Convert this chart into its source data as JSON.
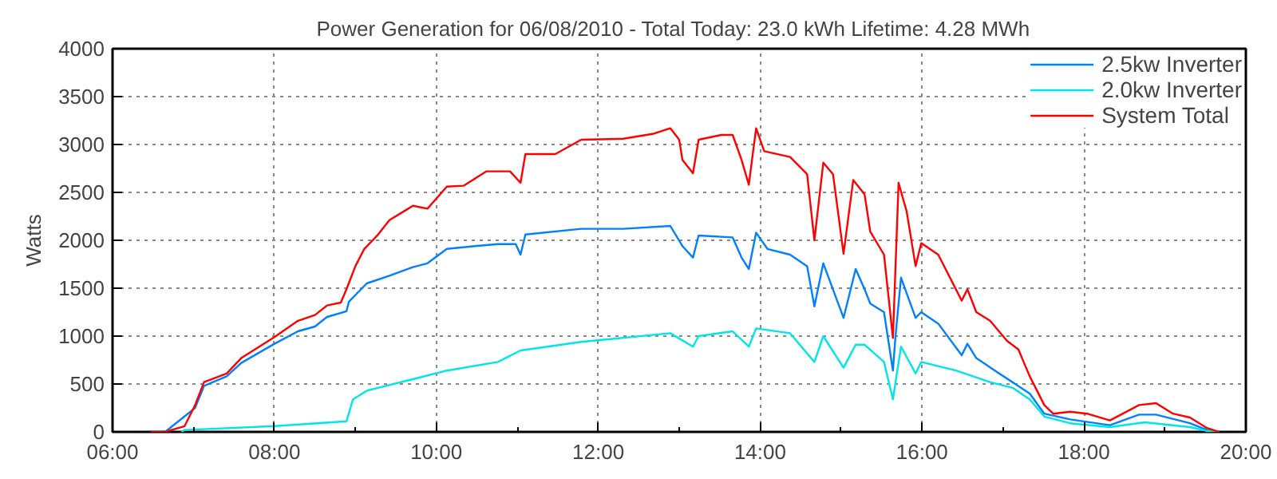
{
  "chart_data": {
    "type": "line",
    "title": "Power Generation for 06/08/2010 - Total Today: 23.0 kWh   Lifetime: 4.28 MWh",
    "ylabel": "Watts",
    "xlim": [
      6,
      20
    ],
    "ylim": [
      0,
      4000
    ],
    "xticks": [
      {
        "value": 6,
        "label": "06:00"
      },
      {
        "value": 7,
        "label": null
      },
      {
        "value": 8,
        "label": "08:00"
      },
      {
        "value": 9,
        "label": null
      },
      {
        "value": 10,
        "label": "10:00"
      },
      {
        "value": 11,
        "label": null
      },
      {
        "value": 12,
        "label": "12:00"
      },
      {
        "value": 13,
        "label": null
      },
      {
        "value": 14,
        "label": "14:00"
      },
      {
        "value": 15,
        "label": null
      },
      {
        "value": 16,
        "label": "16:00"
      },
      {
        "value": 17,
        "label": null
      },
      {
        "value": 18,
        "label": "18:00"
      },
      {
        "value": 19,
        "label": null
      },
      {
        "value": 20,
        "label": "20:00"
      }
    ],
    "yticks": [
      0,
      500,
      1000,
      1500,
      2000,
      2500,
      3000,
      3500,
      4000
    ],
    "grid": true,
    "legend": "top right",
    "series": [
      {
        "name": "2.5kw Inverter",
        "color": "#0080ff",
        "x": [
          6.65,
          7.02,
          7.13,
          7.41,
          7.59,
          8.0,
          8.29,
          8.5,
          8.65,
          8.89,
          8.92,
          9.14,
          9.42,
          9.71,
          9.89,
          10.13,
          10.48,
          10.76,
          10.98,
          11.04,
          11.1,
          11.79,
          12.31,
          12.89,
          13.04,
          13.17,
          13.24,
          13.66,
          13.77,
          13.86,
          13.95,
          14.09,
          14.37,
          14.58,
          14.67,
          14.78,
          15.03,
          15.18,
          15.29,
          15.36,
          15.53,
          15.64,
          15.67,
          15.74,
          15.92,
          15.99,
          16.2,
          16.49,
          16.56,
          16.67,
          16.9,
          17.33,
          17.51,
          17.83,
          18.32,
          18.68,
          18.89,
          19.31,
          19.52,
          19.67
        ],
        "values": [
          0,
          250,
          480,
          580,
          720,
          920,
          1050,
          1100,
          1200,
          1260,
          1360,
          1550,
          1630,
          1720,
          1760,
          1910,
          1940,
          1960,
          1960,
          1850,
          2060,
          2120,
          2120,
          2150,
          1940,
          1820,
          2050,
          2030,
          1820,
          1700,
          2080,
          1910,
          1850,
          1730,
          1310,
          1760,
          1190,
          1700,
          1490,
          1340,
          1250,
          640,
          980,
          1610,
          1190,
          1250,
          1130,
          800,
          920,
          770,
          640,
          400,
          190,
          130,
          70,
          180,
          180,
          90,
          20,
          0
        ]
      },
      {
        "name": "2.0kw Inverter",
        "color": "#00e5e5",
        "x": [
          6.85,
          6.89,
          8.0,
          8.89,
          8.97,
          9.14,
          9.71,
          10.13,
          10.76,
          11.04,
          11.79,
          12.89,
          13.17,
          13.24,
          13.66,
          13.86,
          13.95,
          14.37,
          14.67,
          14.78,
          15.03,
          15.18,
          15.29,
          15.53,
          15.64,
          15.74,
          15.92,
          15.99,
          16.42,
          16.84,
          17.12,
          17.33,
          17.51,
          17.83,
          18.32,
          18.75,
          19.31,
          19.52,
          19.67
        ],
        "values": [
          0,
          20,
          60,
          110,
          340,
          430,
          550,
          640,
          730,
          850,
          940,
          1030,
          890,
          1000,
          1050,
          890,
          1080,
          1030,
          730,
          1000,
          670,
          910,
          910,
          730,
          340,
          890,
          610,
          730,
          640,
          520,
          460,
          340,
          160,
          90,
          50,
          100,
          50,
          10,
          0
        ]
      },
      {
        "name": "System Total",
        "color": "#ff0000",
        "x": [
          6.47,
          6.65,
          6.89,
          7.02,
          7.13,
          7.41,
          7.59,
          8.0,
          8.29,
          8.5,
          8.65,
          8.82,
          8.89,
          9.0,
          9.11,
          9.28,
          9.42,
          9.71,
          9.89,
          10.13,
          10.34,
          10.62,
          10.91,
          11.04,
          11.1,
          11.47,
          11.79,
          12.31,
          12.67,
          12.89,
          13.0,
          13.04,
          13.17,
          13.24,
          13.52,
          13.66,
          13.77,
          13.86,
          13.95,
          14.05,
          14.37,
          14.58,
          14.67,
          14.78,
          14.9,
          15.03,
          15.15,
          15.29,
          15.36,
          15.53,
          15.64,
          15.71,
          15.81,
          15.92,
          15.99,
          16.2,
          16.49,
          16.56,
          16.67,
          16.84,
          17.05,
          17.19,
          17.33,
          17.51,
          17.62,
          17.83,
          18.04,
          18.32,
          18.68,
          18.89,
          19.1,
          19.31,
          19.52,
          19.67
        ],
        "values": [
          0,
          0,
          60,
          280,
          520,
          610,
          770,
          990,
          1160,
          1220,
          1320,
          1350,
          1490,
          1730,
          1910,
          2060,
          2210,
          2360,
          2330,
          2560,
          2570,
          2720,
          2720,
          2600,
          2900,
          2900,
          3050,
          3060,
          3110,
          3170,
          3050,
          2840,
          2700,
          3050,
          3100,
          3100,
          2840,
          2580,
          3170,
          2930,
          2870,
          2690,
          2000,
          2810,
          2690,
          1860,
          2630,
          2480,
          2090,
          1850,
          980,
          2600,
          2300,
          1730,
          1970,
          1850,
          1370,
          1490,
          1250,
          1160,
          950,
          860,
          580,
          280,
          190,
          210,
          190,
          120,
          280,
          300,
          190,
          150,
          40,
          0
        ]
      }
    ]
  }
}
